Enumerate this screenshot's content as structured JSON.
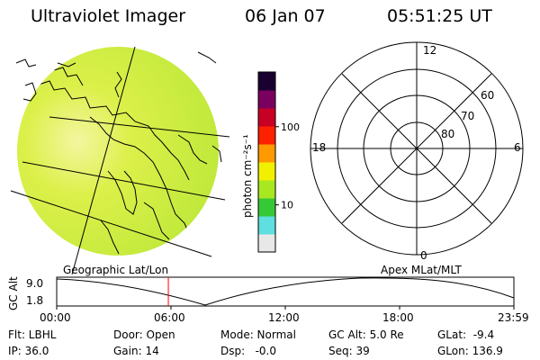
{
  "header": {
    "instrument": "Ultraviolet Imager",
    "date": "06 Jan 07",
    "time": "05:51:25 UT"
  },
  "colorbar": {
    "unit_label": "photon cm⁻²s⁻¹",
    "ticks": [
      {
        "value": 100,
        "label": "100"
      },
      {
        "value": 10,
        "label": "10"
      }
    ],
    "scale": "log",
    "range": [
      2.5,
      500
    ],
    "colors": [
      "#e8e8e8",
      "#5fdfdf",
      "#36c936",
      "#a8e820",
      "#f0f000",
      "#ff9900",
      "#ff2000",
      "#c80024",
      "#7a0060",
      "#1a0030"
    ]
  },
  "left_panel": {
    "label": "Geographic Lat/Lon",
    "fill_color": "#d6f04a"
  },
  "right_panel": {
    "label": "Apex MLat/MLT",
    "mlt_labels": {
      "top": "12",
      "left": "18",
      "right": "6",
      "bottom": "0"
    },
    "mlat_labels": [
      "60",
      "70",
      "80"
    ]
  },
  "altitude_plot": {
    "ylabel": "GC Alt",
    "yticks": [
      "9.0",
      "1.8"
    ],
    "xticks": [
      "00:00",
      "06:00",
      "12:00",
      "18:00",
      "23:59"
    ],
    "current_marker_hour": 5.86,
    "marker_color": "#ff0000"
  },
  "info": {
    "row1": {
      "flt": "Flt: LBHL",
      "door": "Door: Open",
      "mode": "Mode: Normal",
      "gcalt": "GC Alt: 5.0 Re",
      "glat": "GLat:  -9.4"
    },
    "row2": {
      "ip": "IP: 36.0",
      "gain": "Gain: 14",
      "dsp": "Dsp:   -0.0",
      "seq": "Seq: 39",
      "glon": "GLon: 136.9"
    }
  }
}
